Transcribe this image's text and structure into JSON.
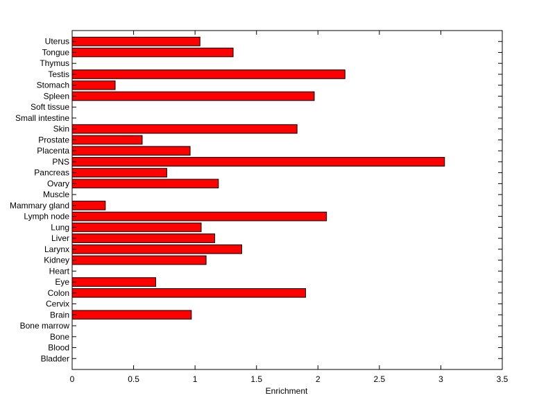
{
  "chart_data": {
    "type": "bar",
    "orientation": "horizontal",
    "title": "",
    "xlabel": "Enrichment",
    "ylabel": "",
    "xlim": [
      0,
      3.5
    ],
    "xticks": [
      0,
      0.5,
      1,
      1.5,
      2,
      2.5,
      3,
      3.5
    ],
    "xtick_labels": [
      "0",
      "0.5",
      "1",
      "1.5",
      "2",
      "2.5",
      "3",
      "3.5"
    ],
    "grid": false,
    "legend": "none",
    "bar_color": "#ff0000",
    "bar_edge_color": "#000000",
    "categories": [
      "Uterus",
      "Tongue",
      "Thymus",
      "Testis",
      "Stomach",
      "Spleen",
      "Soft tissue",
      "Small intestine",
      "Skin",
      "Prostate",
      "Placenta",
      "PNS",
      "Pancreas",
      "Ovary",
      "Muscle",
      "Mammary gland",
      "Lymph node",
      "Lung",
      "Liver",
      "Larynx",
      "Kidney",
      "Heart",
      "Eye",
      "Colon",
      "Cervix",
      "Brain",
      "Bone marrow",
      "Bone",
      "Blood",
      "Bladder"
    ],
    "values": [
      1.04,
      1.31,
      0,
      2.22,
      0.35,
      1.97,
      0,
      0,
      1.83,
      0.57,
      0.96,
      3.03,
      0.77,
      1.19,
      0,
      0.27,
      2.07,
      1.05,
      1.16,
      1.38,
      1.09,
      0,
      0.68,
      1.9,
      0,
      0.97,
      0,
      0,
      0,
      0
    ]
  }
}
